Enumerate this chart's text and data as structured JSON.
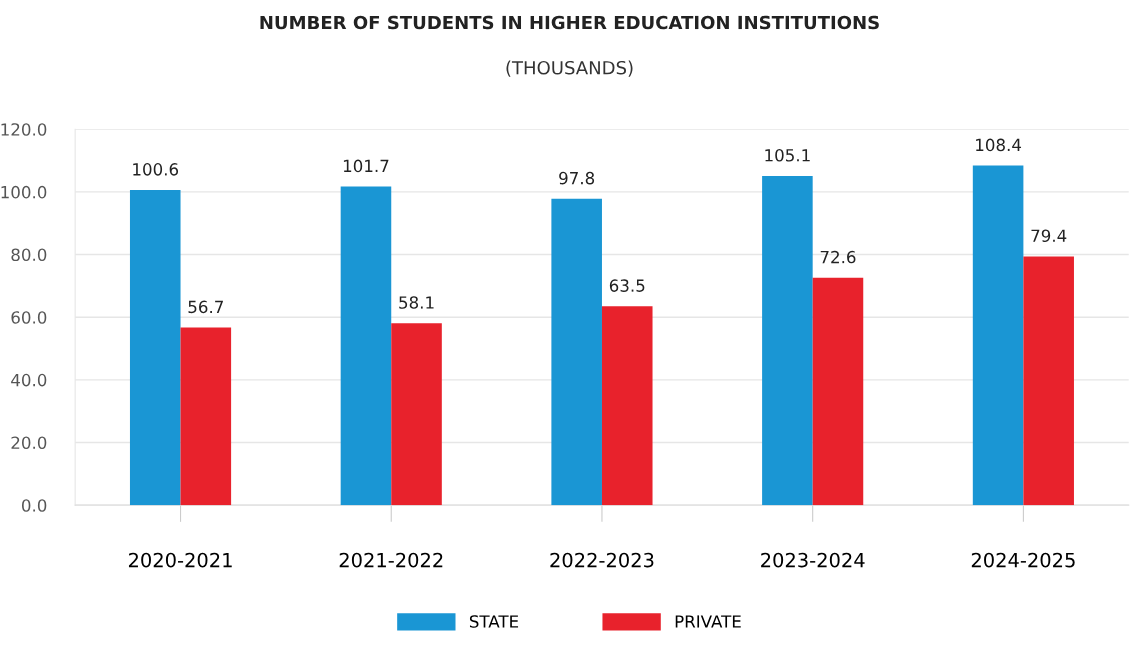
{
  "chart_data": {
    "type": "bar",
    "title": "NUMBER OF STUDENTS IN HIGHER EDUCATION INSTITUTIONS",
    "subtitle": "(THOUSANDS)",
    "categories": [
      "2020-2021",
      "2021-2022",
      "2022-2023",
      "2023-2024",
      "2024-2025"
    ],
    "series": [
      {
        "name": "STATE",
        "color": "#1a96d4",
        "values": [
          100.6,
          101.7,
          97.8,
          105.1,
          108.4
        ]
      },
      {
        "name": "PRIVATE",
        "color": "#e8222c",
        "values": [
          56.7,
          58.1,
          63.5,
          72.6,
          79.4
        ]
      }
    ],
    "ylim": [
      0,
      120
    ],
    "yticks": [
      {
        "value": 0,
        "label": "0.0"
      },
      {
        "value": 20,
        "label": "20.0"
      },
      {
        "value": 40,
        "label": "40.0"
      },
      {
        "value": 60,
        "label": "60.0"
      },
      {
        "value": 80,
        "label": "80.0"
      },
      {
        "value": 100,
        "label": "100.0"
      },
      {
        "value": 120,
        "label": "120.0"
      }
    ],
    "grid": "y",
    "legend": "bottom",
    "data_labels": true
  }
}
